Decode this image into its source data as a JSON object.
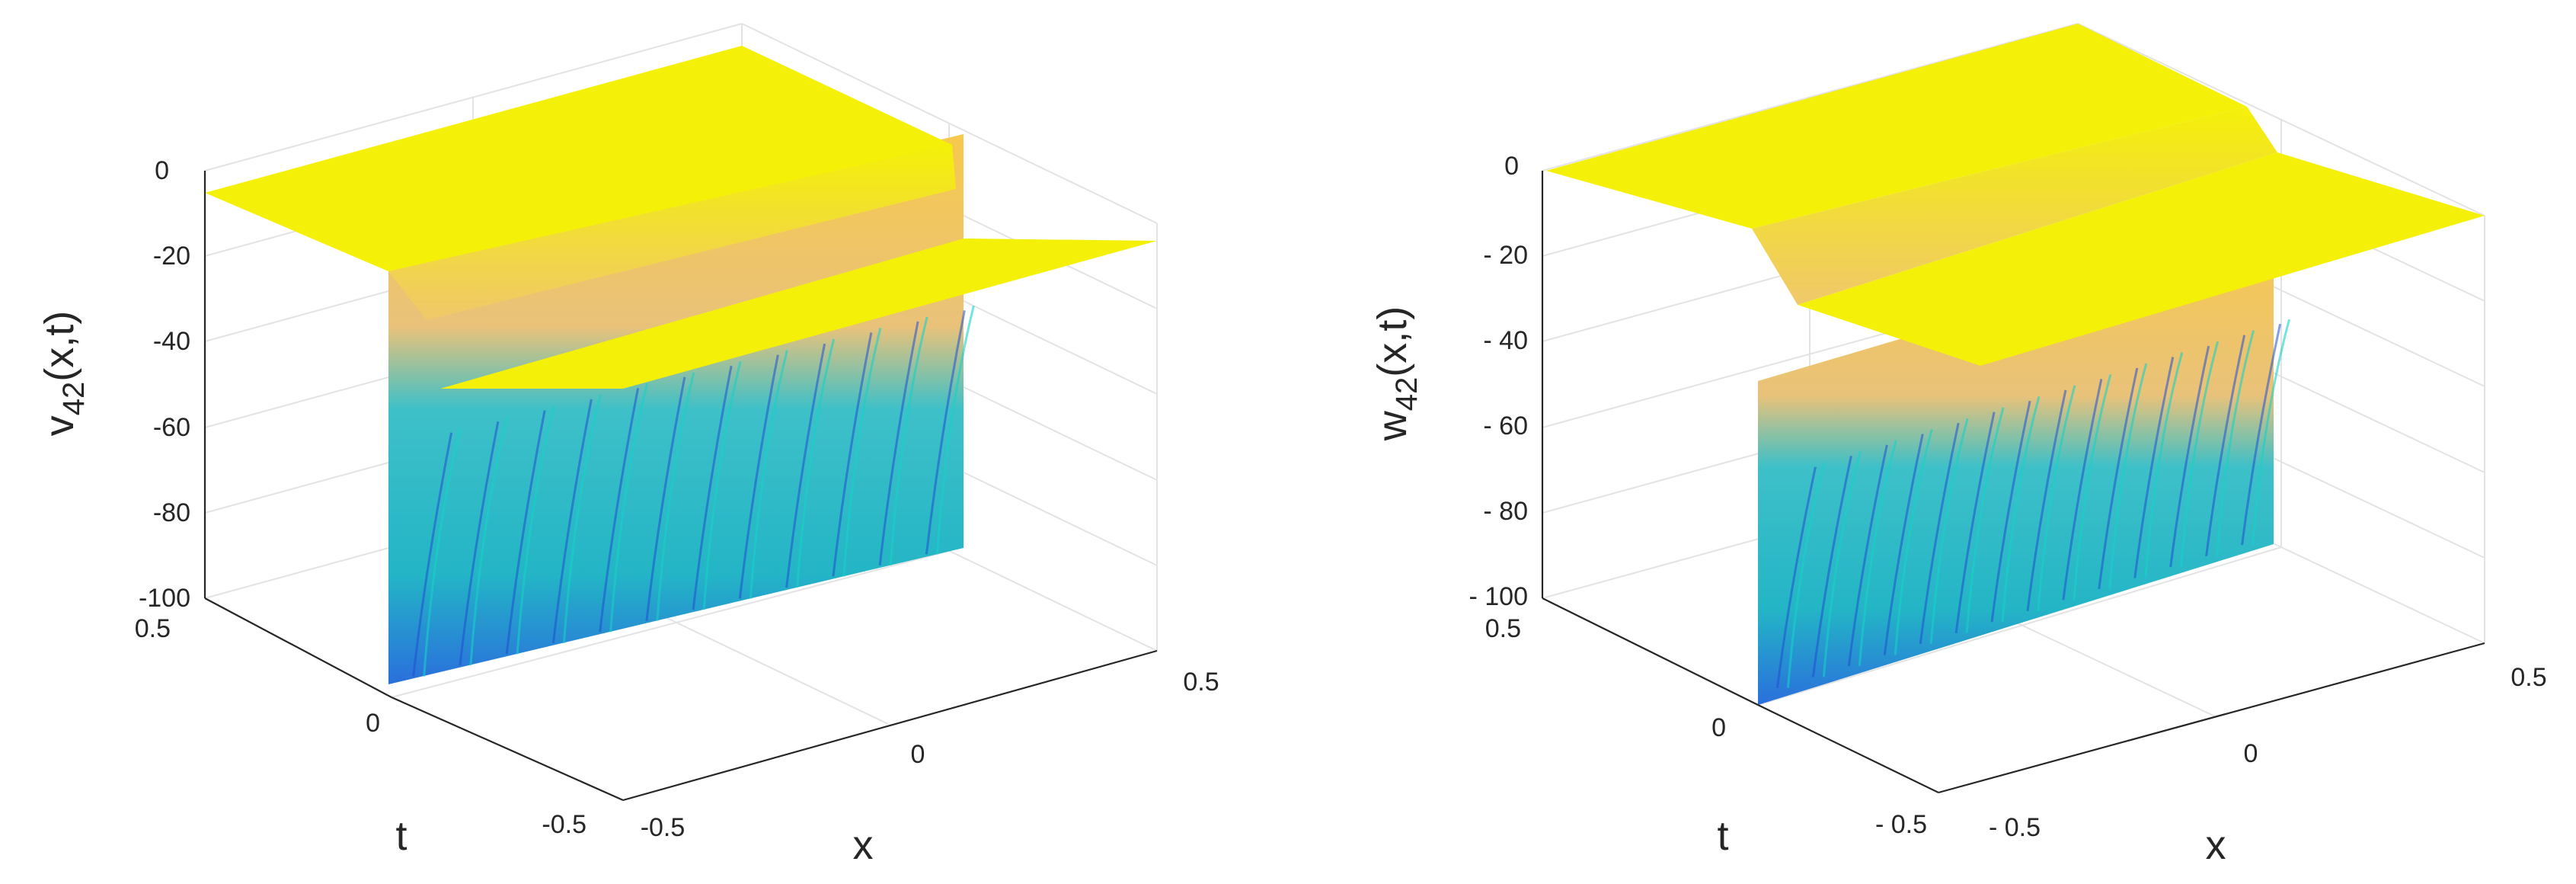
{
  "chart_data": [
    {
      "type": "surface",
      "title": "",
      "xlabel": "x",
      "ylabel": "t",
      "zlabel_base": "v",
      "zlabel_sub": "42",
      "zlabel_args": "(x,t)",
      "xlim": [
        -0.5,
        0.5
      ],
      "ylim": [
        -0.5,
        0.5
      ],
      "zlim": [
        -100,
        0
      ],
      "x_ticks": [
        "-0.5",
        "0",
        "0.5"
      ],
      "y_ticks": [
        "-0.5",
        "0",
        "0.5"
      ],
      "z_ticks": [
        "0",
        "-20",
        "-40",
        "-60",
        "-80",
        "-100"
      ],
      "surface": {
        "plateau_value": 0,
        "singular_line": "x = 0",
        "min_value": -100,
        "colormap": "parula",
        "ridge_count": 12
      }
    },
    {
      "type": "surface",
      "title": "",
      "xlabel": "x",
      "ylabel": "t",
      "zlabel_base": "w",
      "zlabel_sub": "42",
      "zlabel_args": "(x,t)",
      "xlim": [
        -0.5,
        0.5
      ],
      "ylim": [
        -0.5,
        0.5
      ],
      "zlim": [
        -100,
        0
      ],
      "x_ticks": [
        "- 0.5",
        "0",
        "0.5"
      ],
      "y_ticks": [
        "- 0.5",
        "0",
        "0.5"
      ],
      "z_ticks": [
        "0",
        "- 20",
        "- 40",
        "- 60",
        "- 80",
        "- 100"
      ],
      "surface": {
        "plateau_value": 0,
        "singular_line": "x = 0",
        "min_value": -100,
        "colormap": "parula",
        "ridge_count": 14
      }
    }
  ]
}
